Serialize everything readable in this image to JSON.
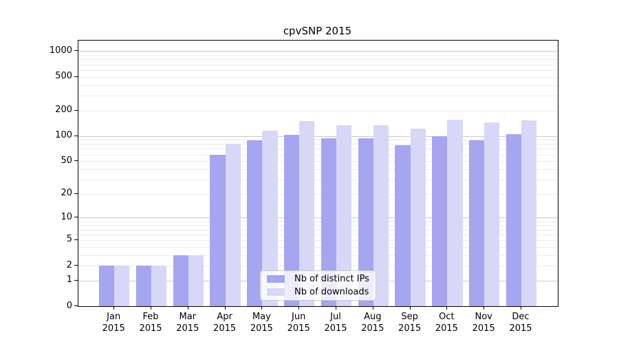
{
  "title": "cpvSNP 2015",
  "chart_data": {
    "type": "bar",
    "title": "cpvSNP 2015",
    "categories": [
      "Jan",
      "Feb",
      "Mar",
      "Apr",
      "May",
      "Jun",
      "Jul",
      "Aug",
      "Sep",
      "Oct",
      "Nov",
      "Dec"
    ],
    "category_year": "2015",
    "series": [
      {
        "name": "Nb of distinct IPs",
        "color": "#a5a5f0",
        "values": [
          2,
          2,
          3,
          60,
          89,
          102,
          93,
          93,
          77,
          100,
          88,
          104
        ]
      },
      {
        "name": "Nb of downloads",
        "color": "#d7d7f7",
        "values": [
          2,
          2,
          3,
          80,
          116,
          151,
          135,
          133,
          123,
          155,
          144,
          154
        ]
      }
    ],
    "xlabel": "",
    "ylabel": "",
    "yscale": "log1p",
    "yticks": [
      0,
      1,
      2,
      5,
      10,
      20,
      50,
      100,
      200,
      500,
      1000
    ],
    "ylim": [
      0,
      1360
    ],
    "grid": "on",
    "grid_major_color": "#c8c8c8",
    "grid_minor_color": "#ebebeb",
    "legend_position": "lower center"
  },
  "legend": {
    "items": [
      {
        "label": "Nb of distinct IPs",
        "color": "#a5a5f0"
      },
      {
        "label": "Nb of downloads",
        "color": "#d7d7f7"
      }
    ]
  }
}
